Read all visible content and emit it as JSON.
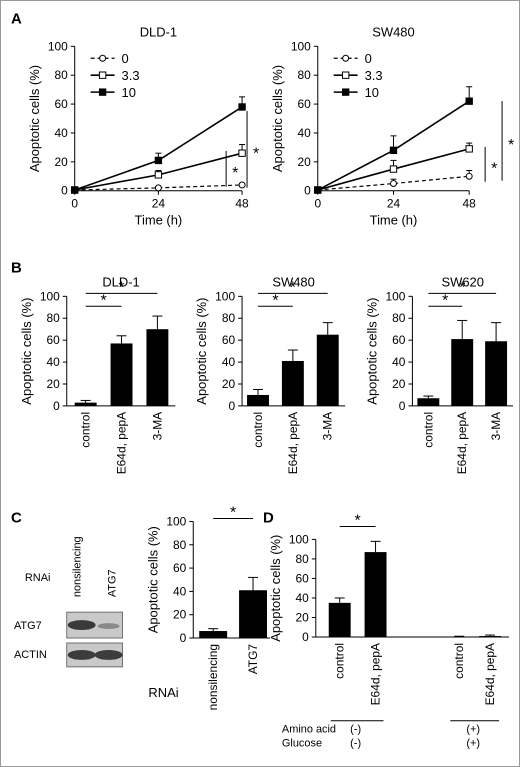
{
  "panels": {
    "A": "A",
    "B": "B",
    "C": "C",
    "D": "D"
  },
  "chart_data": [
    {
      "id": "A1",
      "type": "line",
      "title": "DLD-1",
      "xlabel": "Time (h)",
      "ylabel": "Apoptotic cells (%)",
      "x": [
        0,
        24,
        48
      ],
      "ylim": [
        0,
        100
      ],
      "xticks": [
        "0",
        "24",
        "48"
      ],
      "yticks": [
        "0",
        "20",
        "40",
        "60",
        "80",
        "100"
      ],
      "series": [
        {
          "name": "0",
          "values": [
            0.5,
            2,
            4
          ],
          "err": [
            0,
            1,
            1
          ],
          "marker": "circle-open",
          "dash": true
        },
        {
          "name": "3.3",
          "values": [
            0.5,
            11,
            26
          ],
          "err": [
            0,
            3,
            6
          ],
          "marker": "square-open",
          "dash": false
        },
        {
          "name": "10",
          "values": [
            0.5,
            21,
            58
          ],
          "err": [
            0,
            5,
            7
          ],
          "marker": "square-filled",
          "dash": false
        }
      ],
      "significance": [
        "*",
        "*"
      ],
      "legend": "top-left"
    },
    {
      "id": "A2",
      "type": "line",
      "title": "SW480",
      "xlabel": "Time (h)",
      "ylabel": "Apoptotic cells (%)",
      "x": [
        0,
        24,
        48
      ],
      "ylim": [
        0,
        100
      ],
      "xticks": [
        "0",
        "24",
        "48"
      ],
      "yticks": [
        "0",
        "20",
        "40",
        "60",
        "80",
        "100"
      ],
      "series": [
        {
          "name": "0",
          "values": [
            0.5,
            5,
            10
          ],
          "err": [
            0,
            3,
            4
          ],
          "marker": "circle-open",
          "dash": true
        },
        {
          "name": "3.3",
          "values": [
            0.5,
            15,
            29
          ],
          "err": [
            0,
            6,
            4
          ],
          "marker": "square-open",
          "dash": false
        },
        {
          "name": "10",
          "values": [
            0.5,
            28,
            62
          ],
          "err": [
            0,
            10,
            10
          ],
          "marker": "square-filled",
          "dash": false
        }
      ],
      "significance": [
        "*",
        "*"
      ],
      "legend": "top-left"
    },
    {
      "id": "B1",
      "type": "bar",
      "title": "DLD-1",
      "ylabel": "Apoptotic cells (%)",
      "categories": [
        "control",
        "E64d, pepA",
        "3-MA"
      ],
      "values": [
        3,
        57,
        70
      ],
      "err": [
        2,
        7,
        12
      ],
      "ylim": [
        0,
        100
      ],
      "yticks": [
        "0",
        "20",
        "40",
        "60",
        "80",
        "100"
      ],
      "significance": [
        "*",
        "*"
      ]
    },
    {
      "id": "B2",
      "type": "bar",
      "title": "SW480",
      "ylabel": "Apoptotic cells (%)",
      "categories": [
        "control",
        "E64d, pepA",
        "3-MA"
      ],
      "values": [
        10,
        41,
        65
      ],
      "err": [
        5,
        10,
        11
      ],
      "ylim": [
        0,
        100
      ],
      "yticks": [
        "0",
        "20",
        "40",
        "60",
        "80",
        "100"
      ],
      "significance": [
        "*",
        "*"
      ]
    },
    {
      "id": "B3",
      "type": "bar",
      "title": "SW620",
      "ylabel": "Apoptotic cells (%)",
      "categories": [
        "control",
        "E64d, pepA",
        "3-MA"
      ],
      "values": [
        7,
        61,
        59
      ],
      "err": [
        2,
        17,
        17
      ],
      "ylim": [
        0,
        100
      ],
      "yticks": [
        "0",
        "20",
        "40",
        "60",
        "80",
        "100"
      ],
      "significance": [
        "*",
        "*"
      ]
    },
    {
      "id": "C",
      "type": "bar",
      "ylabel": "Apoptotic cells (%)",
      "categories": [
        "nonsilencing",
        "ATG7"
      ],
      "values": [
        6,
        41
      ],
      "err": [
        2,
        11
      ],
      "ylim": [
        0,
        100
      ],
      "yticks": [
        "0",
        "20",
        "40",
        "60",
        "80",
        "100"
      ],
      "significance": [
        "*"
      ],
      "row_label": "RNAi"
    },
    {
      "id": "D",
      "type": "bar",
      "ylabel": "Apoptotic cells (%)",
      "categories": [
        "control",
        "E64d, pepA",
        "control",
        "E64d, pepA"
      ],
      "values": [
        35,
        87,
        0.5,
        1
      ],
      "err": [
        5,
        11,
        0.3,
        1
      ],
      "ylim": [
        0,
        100
      ],
      "yticks": [
        "0",
        "20",
        "40",
        "60",
        "80",
        "100"
      ],
      "significance": [
        "*"
      ],
      "conditions": [
        {
          "label": "Amino acid",
          "values": [
            "(-)",
            "(+)"
          ]
        },
        {
          "label": "Glucose",
          "values": [
            "(-)",
            "(+)"
          ]
        }
      ]
    }
  ],
  "western_blot": {
    "rnai_label": "RNAi",
    "lanes": [
      "nonsilencing",
      "ATG7"
    ],
    "bands": [
      "ATG7",
      "ACTIN"
    ]
  }
}
